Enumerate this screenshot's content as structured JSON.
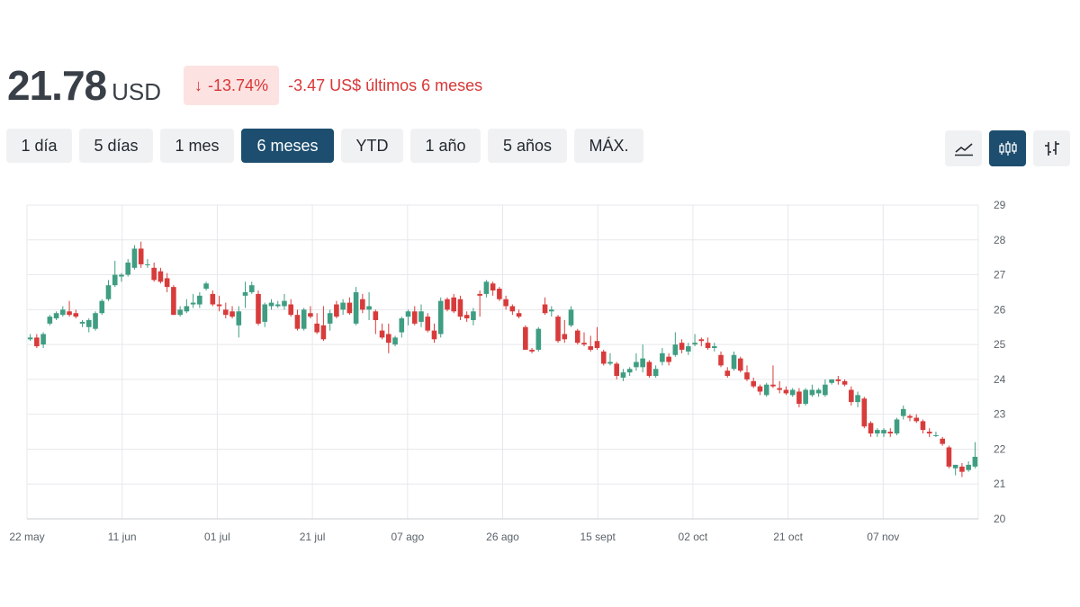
{
  "header": {
    "price": "21.78",
    "currency": "USD",
    "change_pct": "-13.74%",
    "change_abs": "-3.47 US$ últimos 6 meses"
  },
  "ranges": [
    {
      "label": "1 día",
      "active": false
    },
    {
      "label": "5 días",
      "active": false
    },
    {
      "label": "1 mes",
      "active": false
    },
    {
      "label": "6 meses",
      "active": true
    },
    {
      "label": "YTD",
      "active": false
    },
    {
      "label": "1 año",
      "active": false
    },
    {
      "label": "5 años",
      "active": false
    },
    {
      "label": "MÁX.",
      "active": false
    }
  ],
  "chart_types": [
    {
      "icon": "line-chart-icon",
      "active": false
    },
    {
      "icon": "candlestick-chart-icon",
      "active": true
    },
    {
      "icon": "ohlc-bar-chart-icon",
      "active": false
    }
  ],
  "colors": {
    "up": "#3f9d82",
    "down": "#d83b3b",
    "accent": "#1d4e6f",
    "negative_text": "#d93636",
    "negative_bg": "#fde2e2"
  },
  "chart_data": {
    "type": "candlestick",
    "x_ticks": [
      "22 may",
      "11 jun",
      "01 jul",
      "21 jul",
      "07 ago",
      "26 ago",
      "15 sept",
      "02 oct",
      "21 oct",
      "07 nov"
    ],
    "y_ticks": [
      29,
      28,
      27,
      26,
      25,
      24,
      23,
      22,
      21,
      20
    ],
    "ylim": [
      20,
      29
    ],
    "y_axis_position": "right",
    "grid": true,
    "ohlc": [
      [
        25.15,
        25.3,
        25.1,
        25.2
      ],
      [
        25.2,
        25.3,
        24.9,
        24.95
      ],
      [
        25.0,
        25.35,
        24.9,
        25.3
      ],
      [
        25.6,
        25.85,
        25.55,
        25.8
      ],
      [
        25.75,
        25.95,
        25.7,
        25.9
      ],
      [
        25.85,
        26.1,
        25.8,
        26.0
      ],
      [
        25.95,
        26.25,
        25.8,
        25.85
      ],
      [
        25.9,
        26.0,
        25.75,
        25.8
      ],
      [
        25.6,
        25.7,
        25.5,
        25.65
      ],
      [
        25.5,
        25.75,
        25.35,
        25.7
      ],
      [
        25.45,
        25.95,
        25.4,
        25.9
      ],
      [
        25.9,
        26.3,
        25.85,
        26.25
      ],
      [
        26.3,
        26.85,
        26.25,
        26.7
      ],
      [
        26.7,
        27.4,
        26.65,
        27.0
      ],
      [
        26.95,
        27.05,
        26.8,
        27.0
      ],
      [
        27.0,
        27.45,
        26.95,
        27.35
      ],
      [
        27.2,
        27.85,
        27.15,
        27.75
      ],
      [
        27.75,
        27.95,
        27.2,
        27.3
      ],
      [
        27.3,
        27.45,
        27.2,
        27.3
      ],
      [
        27.2,
        27.35,
        26.8,
        26.85
      ],
      [
        27.1,
        27.2,
        26.75,
        26.8
      ],
      [
        26.9,
        27.05,
        26.5,
        26.65
      ],
      [
        26.65,
        26.7,
        25.85,
        25.85
      ],
      [
        25.85,
        26.1,
        25.8,
        26.0
      ],
      [
        25.95,
        26.3,
        25.9,
        26.1
      ],
      [
        26.15,
        26.45,
        26.05,
        26.2
      ],
      [
        26.15,
        26.5,
        26.05,
        26.4
      ],
      [
        26.6,
        26.8,
        26.55,
        26.75
      ],
      [
        26.45,
        26.55,
        26.1,
        26.15
      ],
      [
        26.15,
        26.4,
        25.95,
        26.1
      ],
      [
        26.0,
        26.2,
        25.75,
        25.85
      ],
      [
        25.95,
        26.1,
        25.75,
        25.8
      ],
      [
        25.55,
        26.1,
        25.2,
        25.95
      ],
      [
        26.4,
        26.8,
        26.05,
        26.5
      ],
      [
        26.5,
        26.8,
        26.45,
        26.7
      ],
      [
        26.45,
        26.55,
        25.55,
        25.6
      ],
      [
        25.65,
        26.2,
        25.5,
        26.15
      ],
      [
        26.1,
        26.3,
        26.0,
        26.2
      ],
      [
        26.1,
        26.25,
        26.05,
        26.15
      ],
      [
        26.1,
        26.45,
        26.0,
        26.25
      ],
      [
        26.15,
        26.3,
        25.8,
        25.85
      ],
      [
        25.85,
        26.0,
        25.4,
        25.45
      ],
      [
        25.45,
        26.05,
        25.4,
        26.0
      ],
      [
        25.9,
        26.1,
        25.75,
        25.8
      ],
      [
        25.6,
        25.9,
        25.3,
        25.35
      ],
      [
        25.55,
        26.1,
        25.1,
        25.15
      ],
      [
        25.6,
        26.0,
        25.4,
        25.9
      ],
      [
        26.15,
        26.25,
        25.75,
        25.8
      ],
      [
        26.0,
        26.3,
        25.85,
        26.2
      ],
      [
        26.2,
        26.35,
        25.85,
        25.9
      ],
      [
        25.6,
        26.65,
        25.55,
        26.5
      ],
      [
        26.3,
        26.45,
        25.9,
        26.0
      ],
      [
        26.0,
        26.5,
        25.7,
        26.1
      ],
      [
        25.95,
        26.0,
        25.3,
        25.7
      ],
      [
        25.4,
        25.6,
        25.15,
        25.2
      ],
      [
        25.3,
        25.6,
        24.75,
        25.05
      ],
      [
        25.0,
        25.25,
        24.95,
        25.2
      ],
      [
        25.35,
        25.8,
        25.2,
        25.75
      ],
      [
        25.8,
        26.0,
        25.55,
        25.95
      ],
      [
        25.95,
        26.1,
        25.55,
        25.6
      ],
      [
        25.65,
        26.15,
        25.5,
        25.95
      ],
      [
        25.8,
        25.9,
        25.35,
        25.4
      ],
      [
        25.4,
        25.6,
        25.05,
        25.15
      ],
      [
        25.3,
        26.35,
        25.2,
        26.25
      ],
      [
        26.3,
        26.35,
        25.95,
        26.0
      ],
      [
        26.35,
        26.45,
        25.9,
        25.95
      ],
      [
        26.3,
        26.4,
        25.7,
        25.8
      ],
      [
        25.85,
        25.95,
        25.65,
        25.75
      ],
      [
        25.7,
        26.05,
        25.55,
        25.95
      ],
      [
        26.45,
        26.55,
        25.8,
        26.4
      ],
      [
        26.45,
        26.85,
        26.35,
        26.8
      ],
      [
        26.75,
        26.8,
        26.4,
        26.55
      ],
      [
        26.6,
        26.65,
        26.25,
        26.3
      ],
      [
        26.3,
        26.4,
        26.0,
        26.1
      ],
      [
        26.1,
        26.15,
        25.85,
        25.95
      ],
      [
        25.9,
        26.0,
        25.75,
        25.8
      ],
      [
        25.5,
        25.55,
        24.85,
        24.85
      ],
      [
        24.85,
        24.9,
        24.75,
        24.8
      ],
      [
        24.85,
        25.5,
        24.8,
        25.45
      ],
      [
        26.15,
        26.35,
        25.85,
        25.9
      ],
      [
        25.95,
        26.1,
        25.8,
        26.0
      ],
      [
        25.8,
        25.85,
        25.05,
        25.1
      ],
      [
        25.3,
        25.7,
        25.05,
        25.15
      ],
      [
        25.55,
        26.1,
        25.5,
        26.0
      ],
      [
        25.4,
        25.45,
        25.0,
        25.05
      ],
      [
        25.05,
        25.35,
        24.95,
        25.0
      ],
      [
        24.95,
        25.25,
        24.8,
        24.85
      ],
      [
        25.1,
        25.5,
        24.85,
        24.9
      ],
      [
        24.8,
        24.85,
        24.4,
        24.45
      ],
      [
        24.45,
        24.75,
        24.4,
        24.5
      ],
      [
        24.45,
        24.5,
        24.0,
        24.1
      ],
      [
        24.05,
        24.3,
        23.95,
        24.2
      ],
      [
        24.2,
        24.35,
        24.1,
        24.3
      ],
      [
        24.35,
        24.75,
        24.25,
        24.5
      ],
      [
        24.35,
        25.0,
        24.2,
        24.6
      ],
      [
        24.5,
        24.55,
        24.05,
        24.1
      ],
      [
        24.1,
        24.4,
        24.05,
        24.3
      ],
      [
        24.5,
        24.9,
        24.4,
        24.75
      ],
      [
        24.65,
        24.75,
        24.4,
        24.5
      ],
      [
        24.7,
        25.35,
        24.65,
        25.0
      ],
      [
        25.05,
        25.15,
        24.75,
        24.85
      ],
      [
        24.8,
        25.05,
        24.7,
        24.95
      ],
      [
        25.0,
        25.3,
        24.95,
        25.05
      ],
      [
        25.15,
        25.2,
        24.95,
        25.1
      ],
      [
        25.05,
        25.2,
        24.85,
        24.9
      ],
      [
        24.9,
        25.05,
        24.8,
        24.95
      ],
      [
        24.7,
        24.8,
        24.35,
        24.4
      ],
      [
        24.25,
        24.35,
        24.05,
        24.1
      ],
      [
        24.3,
        24.8,
        24.25,
        24.7
      ],
      [
        24.6,
        24.65,
        24.2,
        24.25
      ],
      [
        24.2,
        24.4,
        23.95,
        24.0
      ],
      [
        23.95,
        24.05,
        23.75,
        23.8
      ],
      [
        23.8,
        23.85,
        23.55,
        23.65
      ],
      [
        23.55,
        23.9,
        23.5,
        23.85
      ],
      [
        23.85,
        24.4,
        23.75,
        23.8
      ],
      [
        23.75,
        23.95,
        23.6,
        23.7
      ],
      [
        23.7,
        23.8,
        23.55,
        23.6
      ],
      [
        23.55,
        23.75,
        23.5,
        23.7
      ],
      [
        23.65,
        23.75,
        23.2,
        23.3
      ],
      [
        23.3,
        23.75,
        23.25,
        23.7
      ],
      [
        23.55,
        23.85,
        23.5,
        23.7
      ],
      [
        23.6,
        23.75,
        23.5,
        23.7
      ],
      [
        23.55,
        24.0,
        23.5,
        23.85
      ],
      [
        23.9,
        24.0,
        23.85,
        24.0
      ],
      [
        24.0,
        24.1,
        23.85,
        23.95
      ],
      [
        23.95,
        24.0,
        23.8,
        23.85
      ],
      [
        23.7,
        23.8,
        23.25,
        23.35
      ],
      [
        23.35,
        23.65,
        23.2,
        23.55
      ],
      [
        23.45,
        23.5,
        22.6,
        22.65
      ],
      [
        22.75,
        22.8,
        22.35,
        22.45
      ],
      [
        22.45,
        22.6,
        22.35,
        22.55
      ],
      [
        22.45,
        22.6,
        22.35,
        22.55
      ],
      [
        22.5,
        22.6,
        22.35,
        22.45
      ],
      [
        22.45,
        22.9,
        22.4,
        22.85
      ],
      [
        22.95,
        23.25,
        22.85,
        23.15
      ],
      [
        22.95,
        23.0,
        22.8,
        22.9
      ],
      [
        22.9,
        23.0,
        22.75,
        22.8
      ],
      [
        22.8,
        22.85,
        22.45,
        22.55
      ],
      [
        22.5,
        22.6,
        22.35,
        22.45
      ],
      [
        22.4,
        22.5,
        22.35,
        22.4
      ],
      [
        22.3,
        22.35,
        22.1,
        22.15
      ],
      [
        22.05,
        22.1,
        21.45,
        21.5
      ],
      [
        21.45,
        21.55,
        21.25,
        21.55
      ],
      [
        21.5,
        21.6,
        21.2,
        21.35
      ],
      [
        21.4,
        21.65,
        21.35,
        21.55
      ],
      [
        21.5,
        22.2,
        21.45,
        21.78
      ]
    ]
  }
}
